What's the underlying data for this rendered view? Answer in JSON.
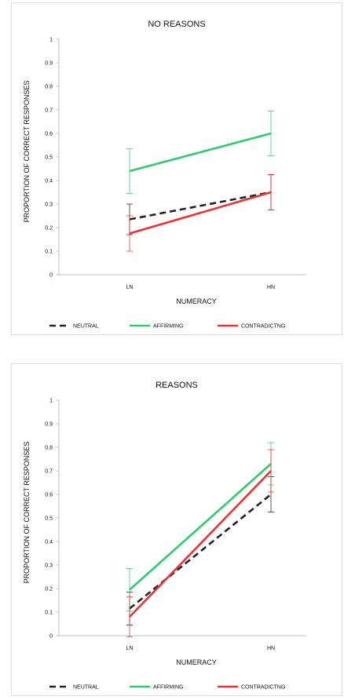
{
  "chart_data": [
    {
      "type": "line",
      "title": "NO REASONS",
      "xlabel": "NUMERACY",
      "ylabel": "PROPORTION OF CORRECT RESPONSES",
      "categories": [
        "LN",
        "HN"
      ],
      "ylim": [
        0,
        1
      ],
      "yticks": [
        "0",
        "0.1",
        "0.2",
        "0.3",
        "0.4",
        "0.5",
        "0.6",
        "0.7",
        "0.8",
        "0.9",
        "1"
      ],
      "legend_position": "bottom",
      "series": [
        {
          "name": "NEUTRAL",
          "color": "#222222",
          "dash": true,
          "values": [
            0.235,
            0.35
          ],
          "err": [
            0.065,
            0.075
          ]
        },
        {
          "name": "AFFIRMING",
          "color": "#2ecc71",
          "dash": false,
          "values": [
            0.44,
            0.6
          ],
          "err": [
            0.095,
            0.095
          ]
        },
        {
          "name": "CONTRADICTNG",
          "color": "#f03030",
          "dash": false,
          "values": [
            0.175,
            0.35
          ],
          "err": [
            0.075,
            0.075
          ]
        }
      ]
    },
    {
      "type": "line",
      "title": "REASONS",
      "xlabel": "NUMERACY",
      "ylabel": "PROPORTION OF CORRECT RESPONSES",
      "categories": [
        "LN",
        "HN"
      ],
      "ylim": [
        0,
        1
      ],
      "yticks": [
        "0",
        "0.1",
        "0.2",
        "0.3",
        "0.4",
        "0.5",
        "0.6",
        "0.7",
        "0.8",
        "0.9",
        "1"
      ],
      "legend_position": "bottom",
      "series": [
        {
          "name": "NEUTRAL",
          "color": "#222222",
          "dash": true,
          "values": [
            0.115,
            0.6
          ],
          "err": [
            0.07,
            0.075
          ]
        },
        {
          "name": "AFFIRMING",
          "color": "#2ecc71",
          "dash": false,
          "values": [
            0.195,
            0.73
          ],
          "err": [
            0.09,
            0.09
          ]
        },
        {
          "name": "CONTRADICTNG",
          "color": "#f03030",
          "dash": false,
          "values": [
            0.08,
            0.7
          ],
          "err": [
            0.085,
            0.09
          ]
        }
      ]
    }
  ]
}
